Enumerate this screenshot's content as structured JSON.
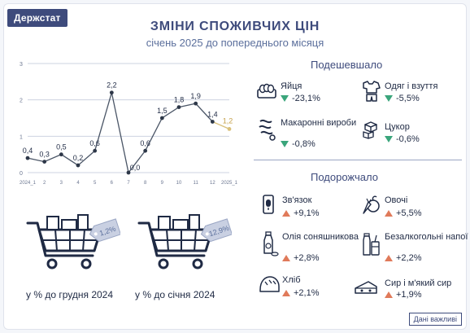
{
  "brand": "Держстат",
  "title": "ЗМІНИ СПОЖИВЧИХ ЦІН",
  "subtitle": "січень 2025 до попереднього місяця",
  "chart_data": {
    "type": "line",
    "title": "",
    "xlabel": "",
    "ylabel": "",
    "y_ticks": [
      "0",
      "1",
      "2",
      "3"
    ],
    "ylim": [
      0,
      3
    ],
    "x_ticks": [
      "2024_1",
      "2",
      "3",
      "4",
      "5",
      "6",
      "7",
      "8",
      "9",
      "10",
      "11",
      "12",
      "2025_1"
    ],
    "values": [
      0.4,
      0.3,
      0.5,
      0.2,
      0.6,
      2.2,
      0.0,
      0.6,
      1.5,
      1.8,
      1.9,
      1.4,
      1.2
    ],
    "data_labels": [
      "0,4",
      "0,3",
      "0,5",
      "0,2",
      "0,6",
      "2,2",
      "0,0",
      "0,6",
      "1,5",
      "1,8",
      "1,9",
      "1,4",
      "1,2"
    ],
    "grid": true,
    "colors": {
      "line": "#4a5566",
      "grid": "#cdd3e0",
      "last_point": "#d9c07a"
    }
  },
  "baskets": [
    {
      "value": "1,2%",
      "caption": "у % до грудня 2024"
    },
    {
      "value": "12,9%",
      "caption": "у % до січня 2024"
    }
  ],
  "cheaper": {
    "title": "Подешевшало",
    "items": [
      {
        "name": "Яйця",
        "change": "-23,1%",
        "icon": "eggs-icon"
      },
      {
        "name": "Одяг і взуття",
        "change": "-5,5%",
        "icon": "clothes-icon"
      },
      {
        "name": "Макаронні вироби",
        "change": "-0,8%",
        "icon": "pasta-icon"
      },
      {
        "name": "Цукор",
        "change": "-0,6%",
        "icon": "sugar-icon"
      }
    ]
  },
  "pricier": {
    "title": "Подорожчало",
    "items": [
      {
        "name": "Зв'язок",
        "change": "+9,1%",
        "icon": "phone-icon"
      },
      {
        "name": "Овочі",
        "change": "+5,5%",
        "icon": "vegetables-icon"
      },
      {
        "name": "Олія соняшникова",
        "change": "+2,8%",
        "icon": "oil-icon"
      },
      {
        "name": "Безалкогольні напої",
        "change": "+2,2%",
        "icon": "drinks-icon"
      },
      {
        "name": "Хліб",
        "change": "+2,1%",
        "icon": "bread-icon"
      },
      {
        "name": "Сир і м'який сир",
        "change": "+1,9%",
        "icon": "cheese-icon"
      }
    ]
  },
  "footer": "Дані важливі",
  "colors": {
    "accent": "#3e4b7c",
    "down": "#3aa57b",
    "up": "#e07a5a"
  }
}
